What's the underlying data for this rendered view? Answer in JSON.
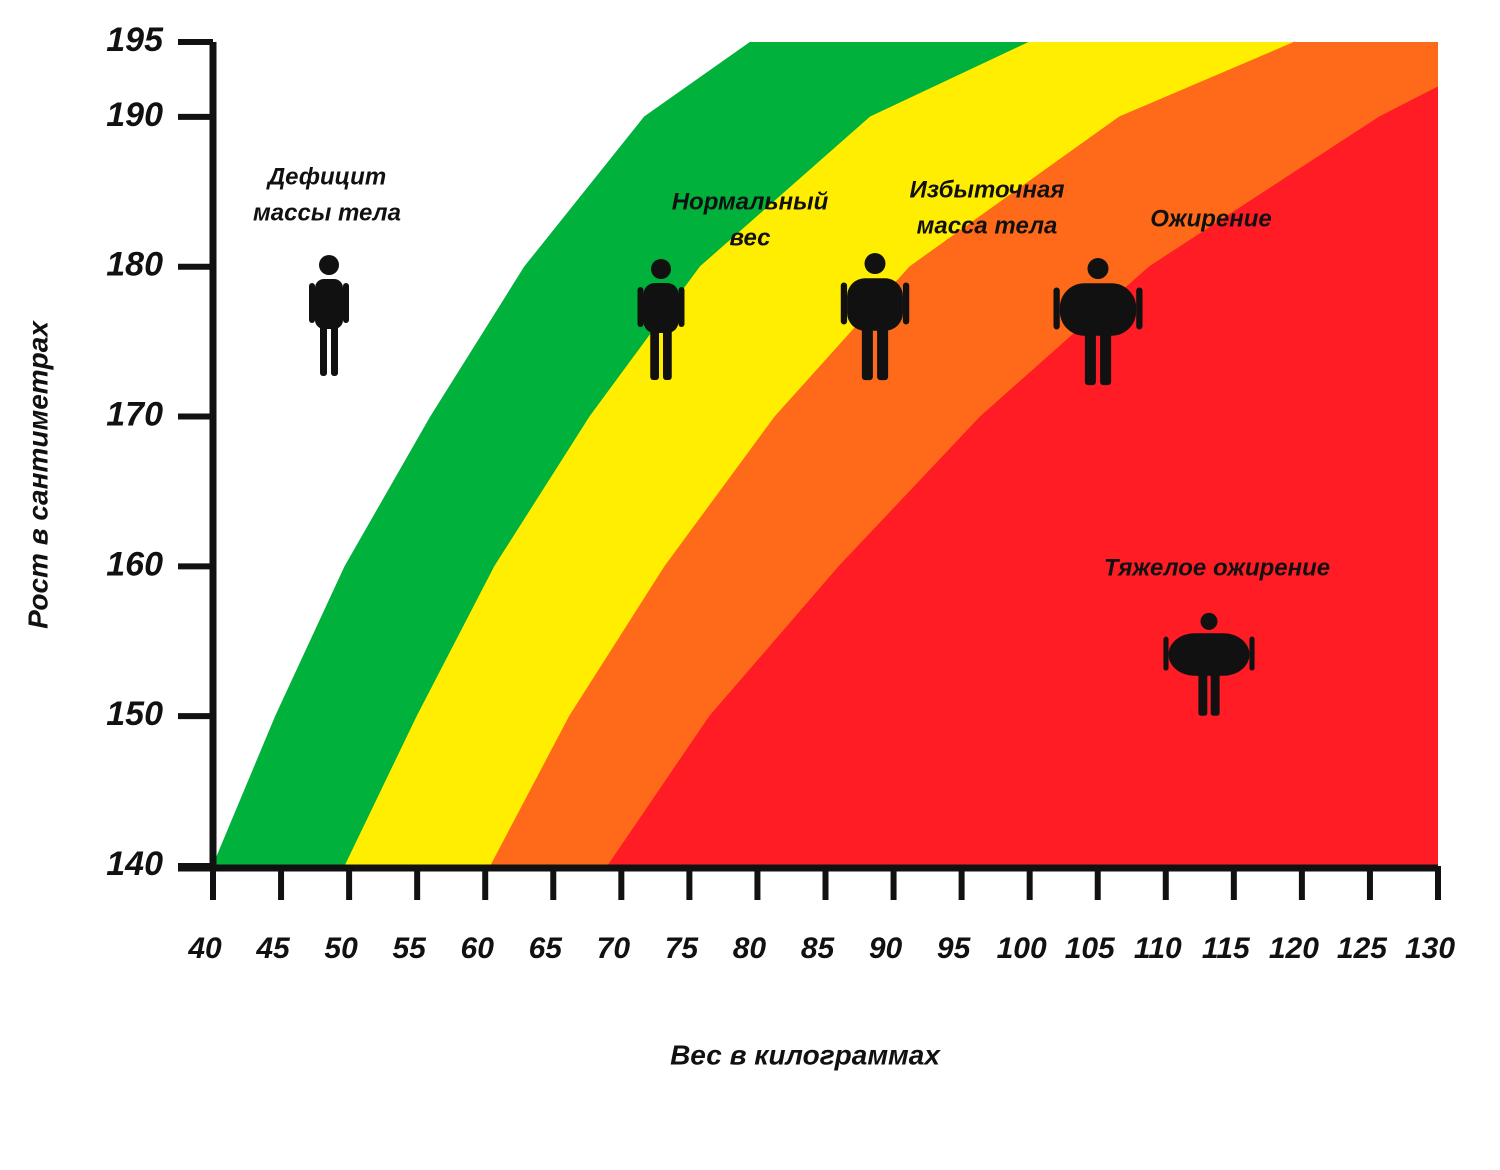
{
  "chart_data": {
    "type": "zones",
    "x_label": "Вес в килограммах",
    "y_label": "Рост в сантиметрах",
    "xlim": [
      40,
      130
    ],
    "ylim": [
      140,
      195
    ],
    "xticks": [
      40,
      45,
      50,
      55,
      60,
      65,
      70,
      75,
      80,
      85,
      90,
      95,
      100,
      105,
      110,
      115,
      120,
      125,
      130
    ],
    "yticks": [
      140,
      150,
      160,
      170,
      180,
      190,
      195
    ],
    "zones": [
      {
        "label_lines": [
          "Дефицит",
          "массы тела"
        ],
        "color": "#ffffff"
      },
      {
        "label_lines": [
          "Нормальный",
          "вес"
        ],
        "color": "#00b13c",
        "x": [
          40,
          44.6,
          49.7,
          56,
          62.9,
          71.7,
          79.5
        ],
        "y": [
          140,
          150,
          160,
          170,
          180,
          190,
          195
        ]
      },
      {
        "label_lines": [
          "Избыточная",
          "масса тела"
        ],
        "color": "#ffee00",
        "x": [
          49.7,
          55,
          60.7,
          67.7,
          75.8,
          88.3,
          100
        ],
        "y": [
          140,
          150,
          160,
          170,
          180,
          190,
          195
        ]
      },
      {
        "label_lines": [
          "Ожирение"
        ],
        "color": "#ff6a1a",
        "x": [
          60.4,
          66.2,
          73.2,
          81.3,
          91.2,
          106.6,
          119.5
        ],
        "y": [
          140,
          150,
          160,
          170,
          180,
          190,
          195
        ]
      },
      {
        "label_lines": [
          "Тяжелое ожирение"
        ],
        "color": "#ff1c24",
        "x": [
          69,
          76.5,
          86,
          96.4,
          108.8,
          125.7,
          130
        ],
        "y": [
          140,
          150,
          160,
          170,
          180,
          190,
          192
        ]
      }
    ]
  }
}
